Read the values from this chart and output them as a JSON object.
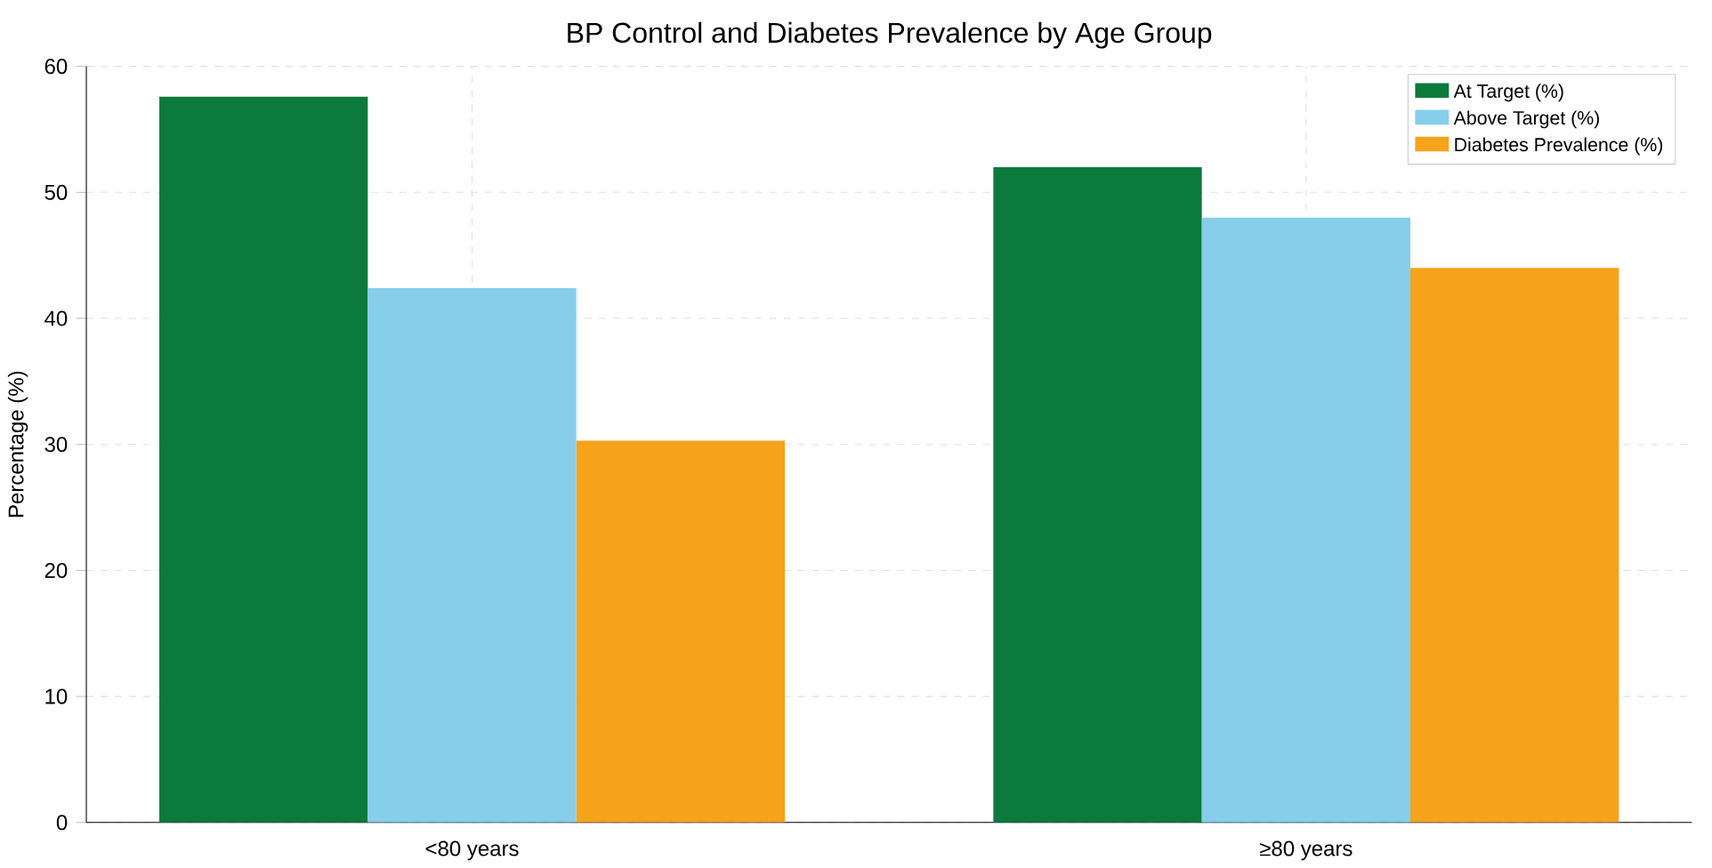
{
  "chart_data": {
    "type": "bar",
    "title": "BP Control and Diabetes Prevalence by Age Group",
    "ylabel": "Percentage (%)",
    "categories": [
      "<80 years",
      "≥80 years"
    ],
    "series": [
      {
        "name": "At Target (%)",
        "color": "#0b7a3a",
        "values": [
          57.6,
          52.0
        ]
      },
      {
        "name": "Above Target (%)",
        "color": "#87ceeb",
        "values": [
          42.4,
          48.0
        ]
      },
      {
        "name": "Diabetes Prevalence (%)",
        "color": "#f5a31a",
        "values": [
          30.3,
          44.0
        ]
      }
    ],
    "ylim": [
      0,
      60
    ],
    "yticks": [
      0,
      10,
      20,
      30,
      40,
      50,
      60
    ],
    "grid": true,
    "legend": "top right"
  }
}
